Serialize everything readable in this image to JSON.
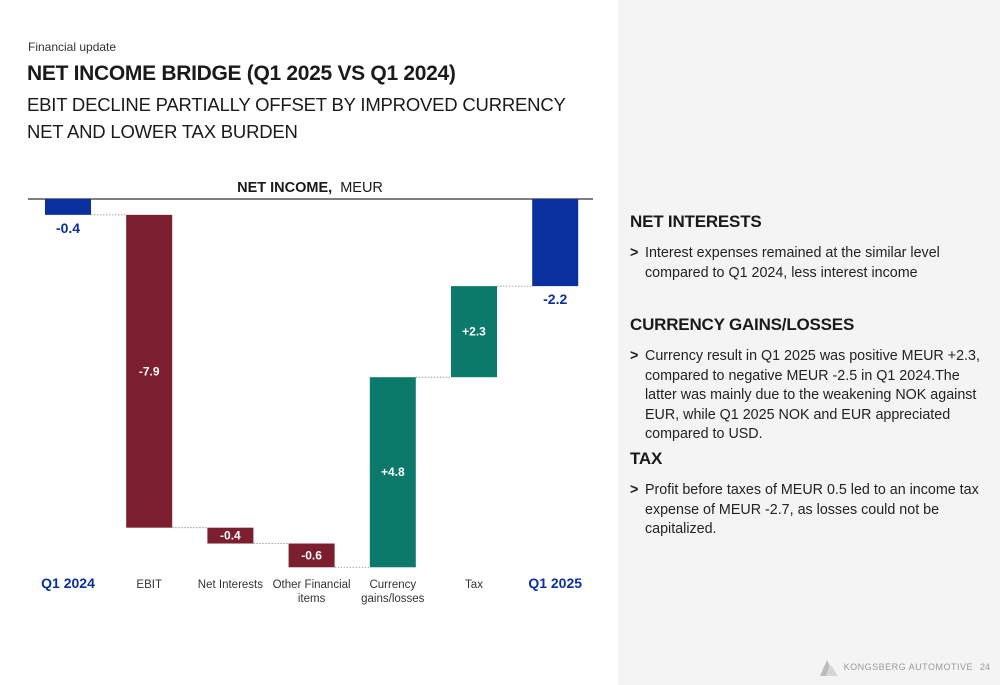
{
  "header": {
    "section": "Financial update",
    "title": "NET INCOME BRIDGE (Q1 2025 VS Q1 2024)",
    "subtitle": "EBIT DECLINE PARTIALLY OFFSET BY IMPROVED CURRENCY NET AND LOWER TAX BURDEN"
  },
  "chart_data": {
    "type": "bar",
    "subtype": "waterfall",
    "title_bold": "NET INCOME,",
    "title_unit": "MEUR",
    "categories": [
      "Q1 2024",
      "EBIT",
      "Net Interests",
      "Other Financial items",
      "Currency gains/losses",
      "Tax",
      "Q1 2025"
    ],
    "category_lines": [
      [
        "Q1 2024"
      ],
      [
        "EBIT"
      ],
      [
        "Net Interests"
      ],
      [
        "Other Financial",
        "items"
      ],
      [
        "Currency",
        "gains/losses"
      ],
      [
        "Tax"
      ],
      [
        "Q1 2025"
      ]
    ],
    "values": [
      -0.4,
      -7.9,
      -0.4,
      -0.6,
      4.8,
      2.3,
      -2.2
    ],
    "labels": [
      "-0.4",
      "-7.9",
      "-0.4",
      "-0.6",
      "+4.8",
      "+2.3",
      "-2.2"
    ],
    "kinds": [
      "total",
      "delta",
      "delta",
      "delta",
      "delta",
      "delta",
      "total"
    ],
    "colors": {
      "total": "#0a2f9e",
      "negative": "#7b1f2e",
      "positive": "#0c7a6b"
    }
  },
  "sidebar": {
    "sections": [
      {
        "heading": "NET INTERESTS",
        "bullets": [
          "Interest expenses remained at the similar level compared to Q1 2024, less interest income"
        ]
      },
      {
        "heading": "CURRENCY GAINS/LOSSES",
        "bullets": [
          "Currency result in Q1 2025 was positive MEUR +2.3, compared to negative MEUR -2.5 in Q1 2024.The latter was mainly due to the weakening NOK against EUR, while Q1 2025 NOK and EUR appreciated compared to USD."
        ]
      },
      {
        "heading": "TAX",
        "bullets": [
          "Profit before taxes of MEUR 0.5 led to an income tax expense of MEUR -2.7, as losses could not be capitalized."
        ]
      }
    ],
    "bullet_glyph": ">"
  },
  "footer": {
    "brand": "KONGSBERG AUTOMOTIVE",
    "page": "24",
    "logo_icon": "kongsberg-logo-icon"
  }
}
